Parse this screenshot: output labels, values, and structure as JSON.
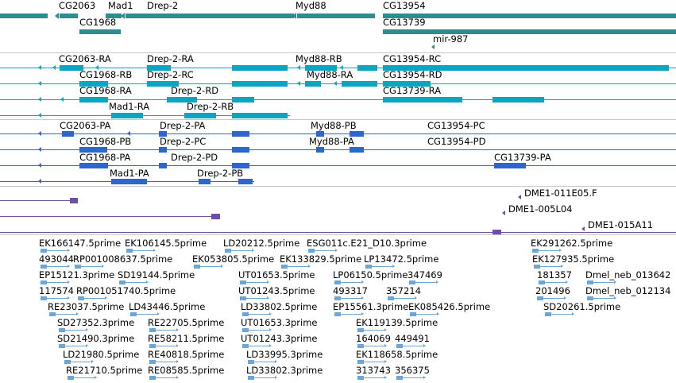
{
  "colors": {
    "gene": "#2a8e8e",
    "transcript_alt": "#0aa5c3",
    "protein": "#2d66cf",
    "clone": "#6f4fa6",
    "est": "#6aa6d8",
    "separator": "#c8c8c8"
  },
  "tracks": {
    "genes": [
      "CG2063",
      "Mad1",
      "Drep-2",
      "Myd88",
      "CG13954",
      "CG1968",
      "CG13739",
      "mir-987"
    ],
    "transcripts": [
      "CG2063-RA",
      "Drep-2-RA",
      "Myd88-RB",
      "CG13954-RC",
      "CG1968-RB",
      "Drep-2-RC",
      "Myd88-RA",
      "CG13954-RD",
      "CG1968-RA",
      "Drep-2-RD",
      "CG13739-RA",
      "Mad1-RA",
      "Drep-2-RB"
    ],
    "proteins": [
      "CG2063-PA",
      "Drep-2-PA",
      "Myd88-PB",
      "CG13954-PC",
      "CG1968-PB",
      "Drep-2-PC",
      "Myd88-PA",
      "CG13954-PD",
      "CG1968-PA",
      "Drep-2-PD",
      "CG13739-PA",
      "Mad1-PA",
      "Drep-2-PB"
    ],
    "clones": [
      "DME1-011E05.F",
      "DME1-005L04",
      "DME1-015A11"
    ],
    "ests": [
      "EK166147.5prime",
      "EK106145.5prime",
      "LD20212.5prime",
      "ESG011c.E21_D10.3prime",
      "EK291262.5prime",
      "493044",
      "RP001008637.5prime",
      "EK053805.5prime",
      "EK133829.5prime",
      "LP13472.5prime",
      "EK127935.5prime",
      "EP15121.3prime",
      "SD19144.5prime",
      "UT01653.5prime",
      "LP06150.5prime",
      "347469",
      "181357",
      "Dmel_neb_013642",
      "117574",
      "RP001051740.5prime",
      "UT01243.5prime",
      "493317",
      "357214",
      "201496",
      "Dmel_neb_012134",
      "RE23037.5prime",
      "LD43446.5prime",
      "LD33802.5prime",
      "EP15561.3prime",
      "EK085426.5prime",
      "SD20261.5prime",
      "SD27352.3prime",
      "RE22705.5prime",
      "UT01653.3prime",
      "EK119139.5prime",
      "SD21490.3prime",
      "RE58211.5prime",
      "UT01243.3prime",
      "164069",
      "449491",
      "LD21980.5prime",
      "RE40818.5prime",
      "LD33995.3prime",
      "EK118658.5prime",
      "RE21710.5prime",
      "RE08585.5prime",
      "LD33802.3prime",
      "313743",
      "356375"
    ]
  }
}
